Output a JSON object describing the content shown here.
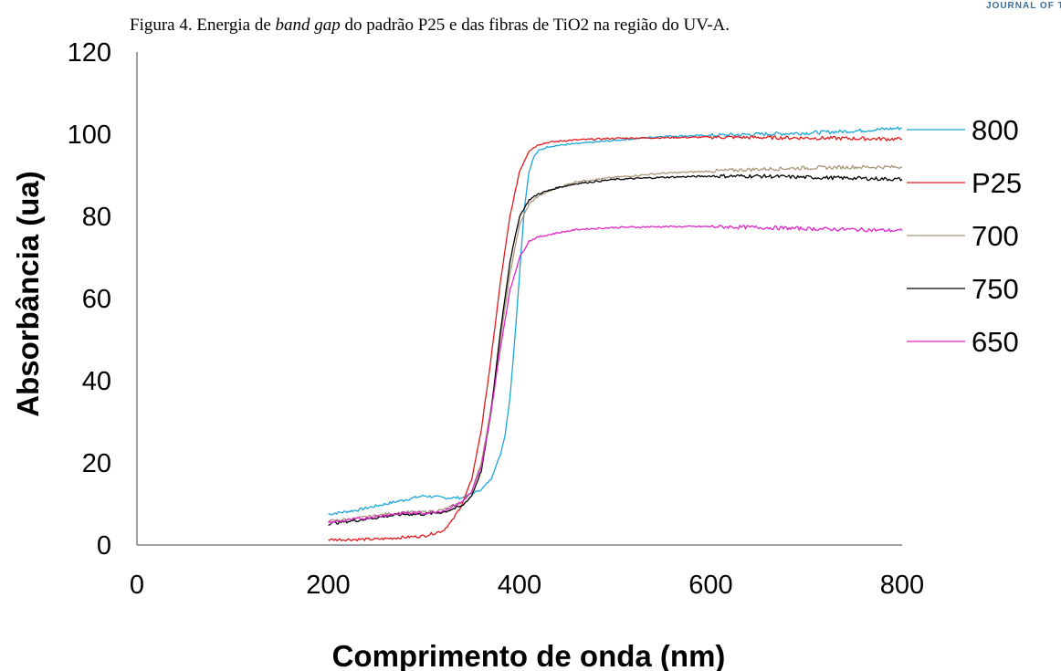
{
  "header_mark": "JOURNAL OF T",
  "caption": {
    "prefix": "Figura 4. Energia de ",
    "italic": "band gap",
    "suffix": " do padrão P25 e das fibras de TiO2 na região do UV-A."
  },
  "chart_data": {
    "type": "line",
    "xlabel": "Comprimento de onda (nm)",
    "ylabel": "Absorbância (ua)",
    "xlim": [
      0,
      800
    ],
    "ylim": [
      0,
      120
    ],
    "xticks": [
      0,
      200,
      400,
      600,
      800
    ],
    "yticks": [
      0,
      20,
      40,
      60,
      80,
      100,
      120
    ],
    "grid": false,
    "legend_position": "right",
    "series": [
      {
        "name": "800",
        "color": "#1aa7d8",
        "x": [
          200,
          230,
          260,
          280,
          300,
          320,
          340,
          360,
          370,
          380,
          385,
          390,
          395,
          400,
          405,
          410,
          415,
          420,
          430,
          450,
          500,
          550,
          600,
          650,
          700,
          750,
          800
        ],
        "y": [
          7.5,
          8.5,
          10,
          11,
          12,
          11.5,
          11.5,
          13.5,
          16,
          22,
          27,
          36,
          50,
          66,
          82,
          91,
          94.5,
          96,
          97,
          97.5,
          98.5,
          99.5,
          99.7,
          100,
          100.3,
          100.8,
          101.5
        ]
      },
      {
        "name": "P25",
        "color": "#e31a1c",
        "x": [
          200,
          250,
          300,
          320,
          330,
          340,
          350,
          360,
          370,
          380,
          390,
          400,
          410,
          420,
          430,
          450,
          500,
          600,
          700,
          800
        ],
        "y": [
          1.3,
          1.4,
          2.2,
          3.5,
          6,
          10,
          16,
          28,
          45,
          64,
          80,
          91,
          96,
          97.5,
          98,
          98.5,
          99,
          99.3,
          99.1,
          98.8
        ]
      },
      {
        "name": "700",
        "color": "#a8987a",
        "x": [
          200,
          230,
          260,
          280,
          300,
          320,
          340,
          350,
          360,
          370,
          380,
          390,
          400,
          410,
          420,
          440,
          460,
          500,
          550,
          600,
          650,
          700,
          750,
          800
        ],
        "y": [
          5.8,
          6.5,
          7.5,
          8,
          8,
          8.5,
          10.5,
          13,
          20,
          33,
          50,
          66,
          78,
          83,
          85,
          87,
          88.5,
          89.5,
          90.5,
          91,
          91.5,
          91.8,
          92,
          92
        ]
      },
      {
        "name": "750",
        "color": "#000000",
        "x": [
          200,
          230,
          260,
          280,
          300,
          320,
          340,
          350,
          360,
          370,
          380,
          390,
          400,
          410,
          420,
          440,
          460,
          500,
          550,
          600,
          650,
          700,
          750,
          800
        ],
        "y": [
          5.2,
          6,
          7,
          7.5,
          7.5,
          8,
          9.5,
          12,
          18,
          32,
          52,
          69,
          80,
          84,
          85.5,
          87,
          88,
          89,
          89.5,
          89.8,
          89.8,
          89.5,
          89.3,
          89
        ]
      },
      {
        "name": "650",
        "color": "#e026c8",
        "x": [
          200,
          230,
          260,
          280,
          300,
          320,
          340,
          350,
          360,
          370,
          380,
          390,
          400,
          410,
          420,
          440,
          460,
          500,
          550,
          600,
          650,
          700,
          750,
          800
        ],
        "y": [
          5.5,
          6.3,
          7.3,
          7.8,
          7.8,
          8.3,
          10.5,
          13,
          19,
          32,
          48,
          62,
          70,
          74,
          75,
          76,
          76.8,
          77.3,
          77.5,
          77.5,
          77.3,
          77,
          76.8,
          76.5
        ]
      }
    ]
  }
}
